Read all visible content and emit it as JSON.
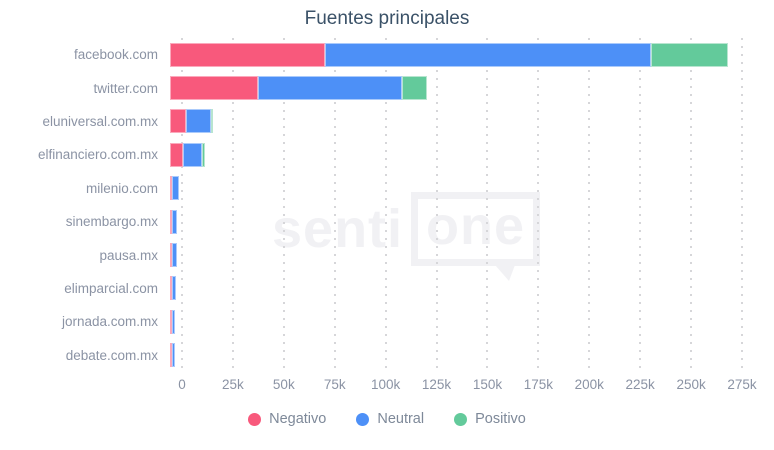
{
  "chart": {
    "title": "Fuentes principales"
  },
  "watermark": {
    "part1": "senti",
    "part2": "one"
  },
  "chart_data": {
    "type": "bar",
    "orientation": "horizontal",
    "stacked": true,
    "title": "Fuentes principales",
    "categories": [
      "facebook.com",
      "twitter.com",
      "eluniversal.com.mx",
      "elfinanciero.com.mx",
      "milenio.com",
      "sinembargo.mx",
      "pausa.mx",
      "elimparcial.com",
      "jornada.com.mx",
      "debate.com.mx"
    ],
    "series": [
      {
        "name": "Negativo",
        "color": "#f8597c",
        "values": [
          76000,
          43000,
          8000,
          6500,
          1200,
          1000,
          300,
          300,
          300,
          300
        ]
      },
      {
        "name": "Neutral",
        "color": "#4d90f7",
        "values": [
          160000,
          71000,
          12000,
          9000,
          3000,
          2500,
          2700,
          2200,
          1700,
          1700
        ]
      },
      {
        "name": "Positivo",
        "color": "#63ca9b",
        "values": [
          38000,
          12000,
          1000,
          1500,
          0,
          0,
          0,
          0,
          0,
          0
        ]
      }
    ],
    "xlim": [
      0,
      275000
    ],
    "xticks": [
      "0",
      "25k",
      "50k",
      "75k",
      "100k",
      "125k",
      "150k",
      "175k",
      "200k",
      "225k",
      "250k",
      "275k"
    ],
    "grid": "vertical-dotted",
    "gridline_color": "#d6d6d9",
    "legend_position": "bottom",
    "legend": [
      "Negativo",
      "Neutral",
      "Positivo"
    ],
    "colors": {
      "negativo": "#f8597c",
      "neutral": "#4d90f7",
      "positivo": "#63ca9b"
    },
    "text_colors": {
      "title": "#3b5268",
      "labels": "#8b93a4",
      "legend": "#7e8999"
    }
  }
}
